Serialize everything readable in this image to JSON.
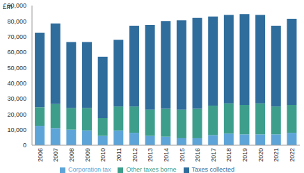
{
  "chart_data": {
    "type": "bar",
    "y_label": "£m",
    "categories": [
      "2006",
      "2007",
      "2008",
      "2009",
      "2010",
      "2011",
      "2012",
      "2013",
      "2014",
      "2015",
      "2016",
      "2017",
      "2018",
      "2019",
      "2020",
      "2021",
      "2022"
    ],
    "series": [
      {
        "name": "Corporation tax",
        "color": "#5da5d8",
        "values": [
          12500,
          11000,
          10000,
          9500,
          6000,
          9500,
          8000,
          6000,
          5500,
          4500,
          4500,
          6500,
          7500,
          7000,
          7000,
          7000,
          8000
        ]
      },
      {
        "name": "Other taxes borne",
        "color": "#3d9e8c",
        "values": [
          12000,
          15500,
          14000,
          14500,
          11500,
          15500,
          17000,
          17000,
          18000,
          18500,
          19000,
          19000,
          19500,
          19000,
          20000,
          18000,
          18000
        ]
      },
      {
        "name": "Taxes collected",
        "color": "#2f6d9c",
        "values": [
          48000,
          52000,
          42500,
          42500,
          39500,
          43000,
          52000,
          54500,
          56500,
          57500,
          58500,
          57500,
          57000,
          58500,
          57000,
          52000,
          55500
        ]
      }
    ],
    "stacked": true,
    "ylim": [
      0,
      90000
    ],
    "yticks": [
      0,
      {
        "value": 10000,
        "label": "10,000"
      },
      {
        "value": 20000,
        "label": "20,000"
      },
      {
        "value": 30000,
        "label": "30,000"
      },
      {
        "value": 40000,
        "label": "40,000"
      },
      {
        "value": 50000,
        "label": "50,000"
      },
      {
        "value": 60000,
        "label": "60,000"
      },
      {
        "value": 70000,
        "label": "70,000"
      },
      {
        "value": 80000,
        "label": "80,000"
      },
      {
        "value": 90000,
        "label": "90,000"
      }
    ],
    "legend": "bottom",
    "grid": false
  }
}
